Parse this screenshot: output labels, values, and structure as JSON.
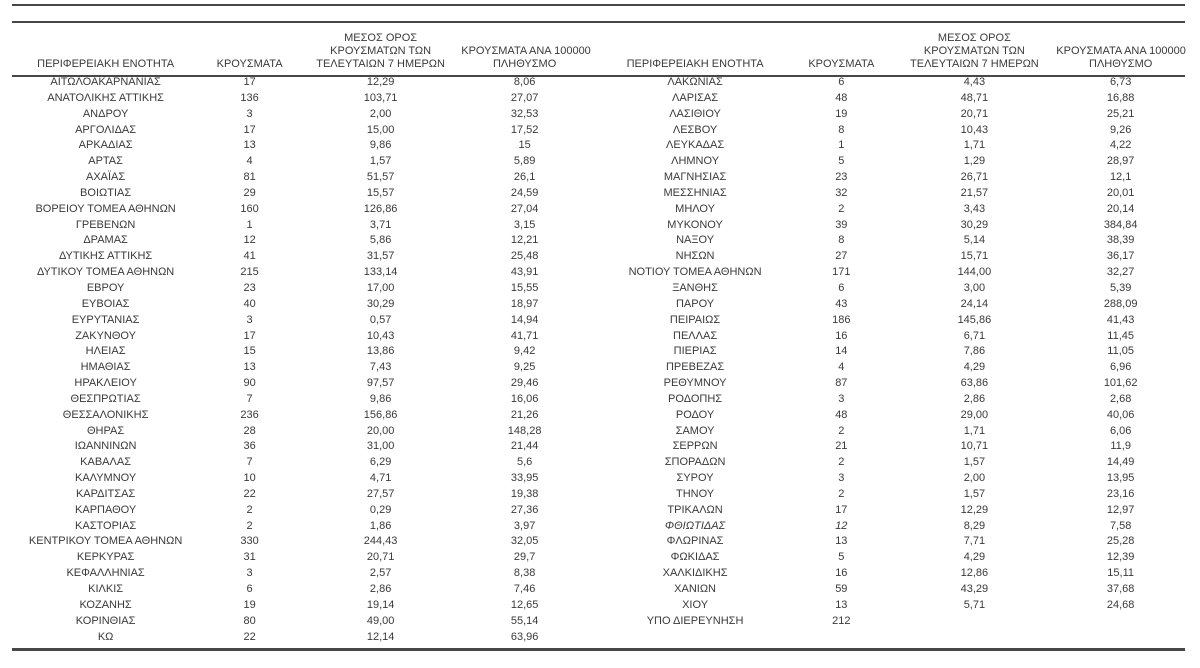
{
  "colors": {
    "text": "#3a3a3a",
    "rule": "#474747"
  },
  "table": {
    "headers": {
      "region": "ΠΕΡΙΦΕΡΕΙΑΚΗ ΕΝΟΤΗΤΑ",
      "cases": "ΚΡΟΥΣΜΑΤΑ",
      "avg7_line1": "ΜΕΣΟΣ ΟΡΟΣ",
      "avg7_line2": "ΚΡΟΥΣΜΑΤΩΝ ΤΩΝ",
      "avg7_line3": "ΤΕΛΕΥΤΑΙΩΝ 7 ΗΜΕΡΩΝ",
      "per100k_line1": "ΚΡΟΥΣΜΑΤΑ ΑΝΑ 100000",
      "per100k_line2": "ΠΛΗΘΥΣΜΟ"
    },
    "left_rows": [
      {
        "region": "ΑΙΤΩΛΟΑΚΑΡΝΑΝΙΑΣ",
        "cases": "17",
        "avg7": "12,29",
        "per100k": "8,06"
      },
      {
        "region": "ΑΝΑΤΟΛΙΚΗΣ ΑΤΤΙΚΗΣ",
        "cases": "136",
        "avg7": "103,71",
        "per100k": "27,07"
      },
      {
        "region": "ΑΝΔΡΟΥ",
        "cases": "3",
        "avg7": "2,00",
        "per100k": "32,53"
      },
      {
        "region": "ΑΡΓΟΛΙΔΑΣ",
        "cases": "17",
        "avg7": "15,00",
        "per100k": "17,52"
      },
      {
        "region": "ΑΡΚΑΔΙΑΣ",
        "cases": "13",
        "avg7": "9,86",
        "per100k": "15"
      },
      {
        "region": "ΑΡΤΑΣ",
        "cases": "4",
        "avg7": "1,57",
        "per100k": "5,89"
      },
      {
        "region": "ΑΧΑΪΑΣ",
        "cases": "81",
        "avg7": "51,57",
        "per100k": "26,1"
      },
      {
        "region": "ΒΟΙΩΤΙΑΣ",
        "cases": "29",
        "avg7": "15,57",
        "per100k": "24,59"
      },
      {
        "region": "ΒΟΡΕΙΟΥ ΤΟΜΕΑ ΑΘΗΝΩΝ",
        "cases": "160",
        "avg7": "126,86",
        "per100k": "27,04"
      },
      {
        "region": "ΓΡΕΒΕΝΩΝ",
        "cases": "1",
        "avg7": "3,71",
        "per100k": "3,15"
      },
      {
        "region": "ΔΡΑΜΑΣ",
        "cases": "12",
        "avg7": "5,86",
        "per100k": "12,21"
      },
      {
        "region": "ΔΥΤΙΚΗΣ ΑΤΤΙΚΗΣ",
        "cases": "41",
        "avg7": "31,57",
        "per100k": "25,48"
      },
      {
        "region": "ΔΥΤΙΚΟΥ ΤΟΜΕΑ ΑΘΗΝΩΝ",
        "cases": "215",
        "avg7": "133,14",
        "per100k": "43,91"
      },
      {
        "region": "ΕΒΡΟΥ",
        "cases": "23",
        "avg7": "17,00",
        "per100k": "15,55"
      },
      {
        "region": "ΕΥΒΟΙΑΣ",
        "cases": "40",
        "avg7": "30,29",
        "per100k": "18,97"
      },
      {
        "region": "ΕΥΡΥΤΑΝΙΑΣ",
        "cases": "3",
        "avg7": "0,57",
        "per100k": "14,94"
      },
      {
        "region": "ΖΑΚΥΝΘΟΥ",
        "cases": "17",
        "avg7": "10,43",
        "per100k": "41,71"
      },
      {
        "region": "ΗΛΕΙΑΣ",
        "cases": "15",
        "avg7": "13,86",
        "per100k": "9,42"
      },
      {
        "region": "ΗΜΑΘΙΑΣ",
        "cases": "13",
        "avg7": "7,43",
        "per100k": "9,25"
      },
      {
        "region": "ΗΡΑΚΛΕΙΟΥ",
        "cases": "90",
        "avg7": "97,57",
        "per100k": "29,46"
      },
      {
        "region": "ΘΕΣΠΡΩΤΙΑΣ",
        "cases": "7",
        "avg7": "9,86",
        "per100k": "16,06"
      },
      {
        "region": "ΘΕΣΣΑΛΟΝΙΚΗΣ",
        "cases": "236",
        "avg7": "156,86",
        "per100k": "21,26"
      },
      {
        "region": "ΘΗΡΑΣ",
        "cases": "28",
        "avg7": "20,00",
        "per100k": "148,28"
      },
      {
        "region": "ΙΩΑΝΝΙΝΩΝ",
        "cases": "36",
        "avg7": "31,00",
        "per100k": "21,44"
      },
      {
        "region": "ΚΑΒΑΛΑΣ",
        "cases": "7",
        "avg7": "6,29",
        "per100k": "5,6"
      },
      {
        "region": "ΚΑΛΥΜΝΟΥ",
        "cases": "10",
        "avg7": "4,71",
        "per100k": "33,95"
      },
      {
        "region": "ΚΑΡΔΙΤΣΑΣ",
        "cases": "22",
        "avg7": "27,57",
        "per100k": "19,38"
      },
      {
        "region": "ΚΑΡΠΑΘΟΥ",
        "cases": "2",
        "avg7": "0,29",
        "per100k": "27,36"
      },
      {
        "region": "ΚΑΣΤΟΡΙΑΣ",
        "cases": "2",
        "avg7": "1,86",
        "per100k": "3,97"
      },
      {
        "region": "ΚΕΝΤΡΙΚΟΥ ΤΟΜΕΑ ΑΘΗΝΩΝ",
        "cases": "330",
        "avg7": "244,43",
        "per100k": "32,05"
      },
      {
        "region": "ΚΕΡΚΥΡΑΣ",
        "cases": "31",
        "avg7": "20,71",
        "per100k": "29,7"
      },
      {
        "region": "ΚΕΦΑΛΛΗΝΙΑΣ",
        "cases": "3",
        "avg7": "2,57",
        "per100k": "8,38"
      },
      {
        "region": "ΚΙΛΚΙΣ",
        "cases": "6",
        "avg7": "2,86",
        "per100k": "7,46"
      },
      {
        "region": "ΚΟΖΑΝΗΣ",
        "cases": "19",
        "avg7": "19,14",
        "per100k": "12,65"
      },
      {
        "region": "ΚΟΡΙΝΘΙΑΣ",
        "cases": "80",
        "avg7": "49,00",
        "per100k": "55,14"
      },
      {
        "region": "ΚΩ",
        "cases": "22",
        "avg7": "12,14",
        "per100k": "63,96"
      }
    ],
    "right_rows": [
      {
        "region": "ΛΑΚΩΝΙΑΣ",
        "cases": "6",
        "avg7": "4,43",
        "per100k": "6,73"
      },
      {
        "region": "ΛΑΡΙΣΑΣ",
        "cases": "48",
        "avg7": "48,71",
        "per100k": "16,88"
      },
      {
        "region": "ΛΑΣΙΘΙΟΥ",
        "cases": "19",
        "avg7": "20,71",
        "per100k": "25,21"
      },
      {
        "region": "ΛΕΣΒΟΥ",
        "cases": "8",
        "avg7": "10,43",
        "per100k": "9,26"
      },
      {
        "region": "ΛΕΥΚΑΔΑΣ",
        "cases": "1",
        "avg7": "1,71",
        "per100k": "4,22"
      },
      {
        "region": "ΛΗΜΝΟΥ",
        "cases": "5",
        "avg7": "1,29",
        "per100k": "28,97"
      },
      {
        "region": "ΜΑΓΝΗΣΙΑΣ",
        "cases": "23",
        "avg7": "26,71",
        "per100k": "12,1"
      },
      {
        "region": "ΜΕΣΣΗΝΙΑΣ",
        "cases": "32",
        "avg7": "21,57",
        "per100k": "20,01"
      },
      {
        "region": "ΜΗΛΟΥ",
        "cases": "2",
        "avg7": "3,43",
        "per100k": "20,14"
      },
      {
        "region": "ΜΥΚΟΝΟΥ",
        "cases": "39",
        "avg7": "30,29",
        "per100k": "384,84"
      },
      {
        "region": "ΝΑΞΟΥ",
        "cases": "8",
        "avg7": "5,14",
        "per100k": "38,39"
      },
      {
        "region": "ΝΗΣΩΝ",
        "cases": "27",
        "avg7": "15,71",
        "per100k": "36,17"
      },
      {
        "region": "ΝΟΤΙΟΥ ΤΟΜΕΑ ΑΘΗΝΩΝ",
        "cases": "171",
        "avg7": "144,00",
        "per100k": "32,27"
      },
      {
        "region": "ΞΑΝΘΗΣ",
        "cases": "6",
        "avg7": "3,00",
        "per100k": "5,39"
      },
      {
        "region": "ΠΑΡΟΥ",
        "cases": "43",
        "avg7": "24,14",
        "per100k": "288,09"
      },
      {
        "region": "ΠΕΙΡΑΙΩΣ",
        "cases": "186",
        "avg7": "145,86",
        "per100k": "41,43"
      },
      {
        "region": "ΠΕΛΛΑΣ",
        "cases": "16",
        "avg7": "6,71",
        "per100k": "11,45"
      },
      {
        "region": "ΠΙΕΡΙΑΣ",
        "cases": "14",
        "avg7": "7,86",
        "per100k": "11,05"
      },
      {
        "region": "ΠΡΕΒΕΖΑΣ",
        "cases": "4",
        "avg7": "4,29",
        "per100k": "6,96"
      },
      {
        "region": "ΡΕΘΥΜΝΟΥ",
        "cases": "87",
        "avg7": "63,86",
        "per100k": "101,62"
      },
      {
        "region": "ΡΟΔΟΠΗΣ",
        "cases": "3",
        "avg7": "2,86",
        "per100k": "2,68"
      },
      {
        "region": "ΡΟΔΟΥ",
        "cases": "48",
        "avg7": "29,00",
        "per100k": "40,06"
      },
      {
        "region": "ΣΑΜΟΥ",
        "cases": "2",
        "avg7": "1,71",
        "per100k": "6,06"
      },
      {
        "region": "ΣΕΡΡΩΝ",
        "cases": "21",
        "avg7": "10,71",
        "per100k": "11,9"
      },
      {
        "region": "ΣΠΟΡΑΔΩΝ",
        "cases": "2",
        "avg7": "1,57",
        "per100k": "14,49"
      },
      {
        "region": "ΣΥΡΟΥ",
        "cases": "3",
        "avg7": "2,00",
        "per100k": "13,95"
      },
      {
        "region": "ΤΗΝΟΥ",
        "cases": "2",
        "avg7": "1,57",
        "per100k": "23,16"
      },
      {
        "region": "ΤΡΙΚΑΛΩΝ",
        "cases": "17",
        "avg7": "12,29",
        "per100k": "12,97"
      },
      {
        "region": "ΦΘΙΩΤΙΔΑΣ",
        "cases": "12",
        "avg7": "8,29",
        "per100k": "7,58",
        "italic": true
      },
      {
        "region": "ΦΛΩΡΙΝΑΣ",
        "cases": "13",
        "avg7": "7,71",
        "per100k": "25,28"
      },
      {
        "region": "ΦΩΚΙΔΑΣ",
        "cases": "5",
        "avg7": "4,29",
        "per100k": "12,39"
      },
      {
        "region": "ΧΑΛΚΙΔΙΚΗΣ",
        "cases": "16",
        "avg7": "12,86",
        "per100k": "15,11"
      },
      {
        "region": "ΧΑΝΙΩΝ",
        "cases": "59",
        "avg7": "43,29",
        "per100k": "37,68"
      },
      {
        "region": "ΧΙΟΥ",
        "cases": "13",
        "avg7": "5,71",
        "per100k": "24,68"
      },
      {
        "region": "ΥΠΟ ΔΙΕΡΕΥΝΗΣΗ",
        "cases": "212",
        "avg7": "",
        "per100k": ""
      }
    ]
  }
}
